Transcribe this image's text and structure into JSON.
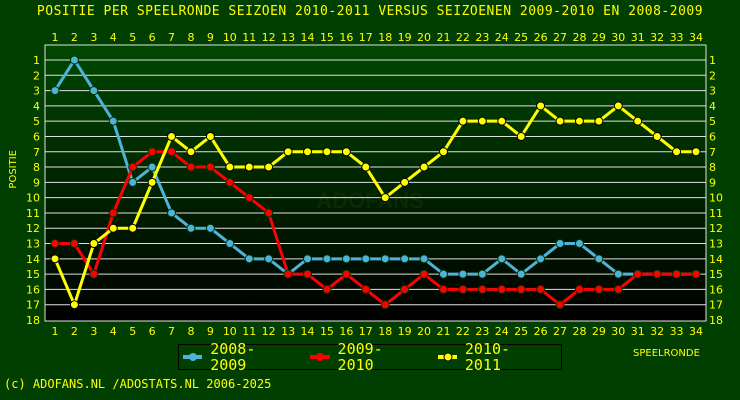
{
  "chart_data": {
    "type": "line",
    "title": "POSITIE PER SPEELRONDE SEIZOEN 2010-2011 VERSUS SEIZOENEN 2009-2010 EN 2008-2009",
    "xlabel": "SPEELRONDE",
    "ylabel": "POSITIE",
    "x": [
      1,
      2,
      3,
      4,
      5,
      6,
      7,
      8,
      9,
      10,
      11,
      12,
      13,
      14,
      15,
      16,
      17,
      18,
      19,
      20,
      21,
      22,
      23,
      24,
      25,
      26,
      27,
      28,
      29,
      30,
      31,
      32,
      33,
      34
    ],
    "xlim": [
      1,
      34
    ],
    "ylim": [
      18,
      1
    ],
    "y_inverted": true,
    "yticks": [
      1,
      2,
      3,
      4,
      5,
      6,
      7,
      8,
      9,
      10,
      11,
      12,
      13,
      14,
      15,
      16,
      17,
      18
    ],
    "grid": true,
    "legend_position": "bottom",
    "series": [
      {
        "name": "2008-2009",
        "color": "#4fb3d9",
        "values": [
          3,
          1,
          3,
          5,
          9,
          8,
          11,
          12,
          12,
          13,
          14,
          14,
          15,
          14,
          14,
          14,
          14,
          14,
          14,
          14,
          15,
          15,
          15,
          14,
          15,
          14,
          13,
          13,
          14,
          15,
          15,
          15,
          15,
          15
        ]
      },
      {
        "name": "2009-2010",
        "color": "#ff0000",
        "values": [
          13,
          13,
          15,
          11,
          8,
          7,
          7,
          8,
          8,
          9,
          10,
          11,
          15,
          15,
          16,
          15,
          16,
          17,
          16,
          15,
          16,
          16,
          16,
          16,
          16,
          16,
          17,
          16,
          16,
          16,
          15,
          15,
          15,
          15
        ]
      },
      {
        "name": "2010-2011",
        "color": "#ffff00",
        "values": [
          14,
          17,
          13,
          12,
          12,
          9,
          6,
          7,
          6,
          8,
          8,
          8,
          7,
          7,
          7,
          7,
          8,
          10,
          9,
          8,
          7,
          5,
          5,
          5,
          6,
          4,
          5,
          5,
          5,
          4,
          5,
          6,
          7,
          7
        ]
      }
    ]
  },
  "watermark": "ADOFANS",
  "copyright": "(c) ADOFANS.NL /ADOSTATS.NL 2006-2025"
}
